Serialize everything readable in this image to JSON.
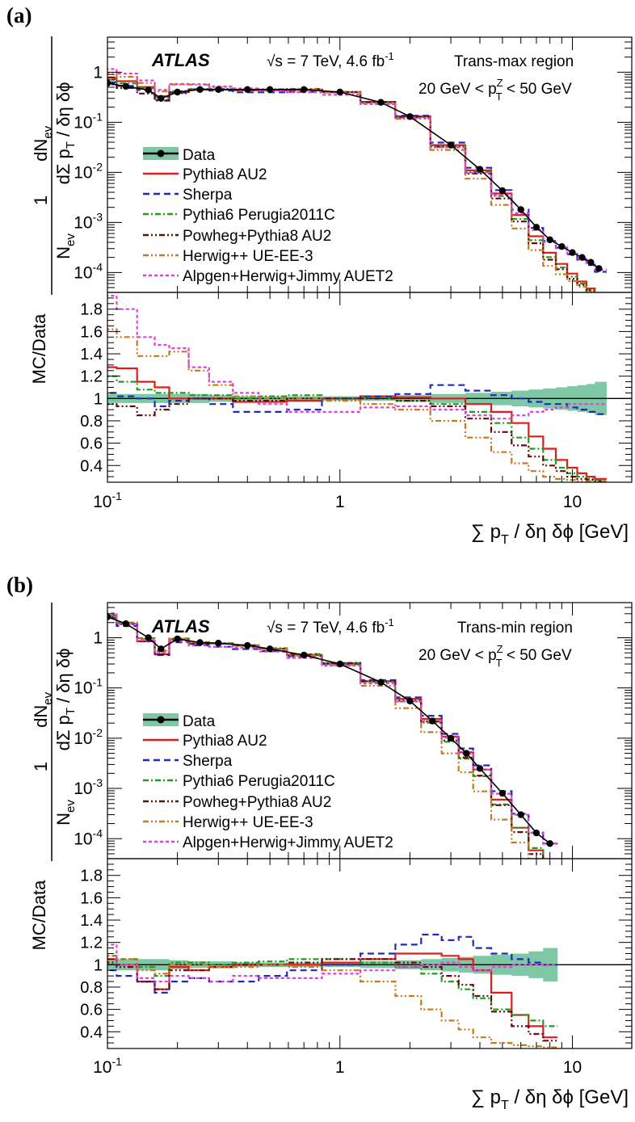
{
  "figure": {
    "panels": [
      {
        "label": "(a)",
        "atlas": "ATLAS",
        "energy_pre": "√s = 7 TeV, 4.6 fb",
        "energy_sup": "-1",
        "region": "Trans-max region",
        "ptcut_pre": "20 GeV < p",
        "ptcut_sup": "Z",
        "ptcut_sub": "T",
        "ptcut_post": " < 50 GeV"
      },
      {
        "label": "(b)",
        "atlas": "ATLAS",
        "energy_pre": "√s = 7 TeV, 4.6 fb",
        "energy_sup": "-1",
        "region": "Trans-min region",
        "ptcut_pre": "20 GeV < p",
        "ptcut_sup": "Z",
        "ptcut_sub": "T",
        "ptcut_post": " < 50 GeV"
      }
    ],
    "ylabel_top": {
      "one": "1",
      "n": "N",
      "n_sub": "ev",
      "num": "dN",
      "num_sub": "ev",
      "den1": "dΣ p",
      "den_sub": "T",
      "den2": " / δη δϕ"
    },
    "ylabel_ratio": "MC/Data",
    "xlabel": {
      "pre": "∑ p",
      "sub": "T",
      "post": " / δη δϕ [GeV]"
    },
    "main_ytick_labels": [
      {
        "mant": "10",
        "exp": "-4"
      },
      {
        "mant": "10",
        "exp": "-3"
      },
      {
        "mant": "10",
        "exp": "-2"
      },
      {
        "mant": "10",
        "exp": "-1"
      },
      {
        "mant": "1",
        "exp": ""
      }
    ],
    "ratio_ytick_labels": [
      "0.4",
      "0.6",
      "0.8",
      "1",
      "1.2",
      "1.4",
      "1.6",
      "1.8"
    ],
    "xtick_labels": [
      {
        "mant": "10",
        "exp": "-1"
      },
      {
        "mant": "1",
        "exp": ""
      },
      {
        "mant": "10",
        "exp": ""
      }
    ]
  },
  "chart_data": [
    {
      "type": "line",
      "panel": "(a)",
      "title": "Trans-max region, 20 GeV < pT^Z < 50 GeV",
      "xlabel": "∑ pT / δη δϕ [GeV]",
      "ylabel": "1/Nev dNev/d∑pT/δηδϕ",
      "xscale": "log",
      "yscale": "log",
      "xlim": [
        0.1,
        18
      ],
      "ylim": [
        4e-05,
        5
      ],
      "ratio_ylabel": "MC/Data",
      "ratio_ylim": [
        0.25,
        1.95
      ],
      "x": [
        0.1,
        0.12,
        0.15,
        0.17,
        0.2,
        0.25,
        0.3,
        0.4,
        0.5,
        0.7,
        1.0,
        1.5,
        2.0,
        3.0,
        4.0,
        5.0,
        6.0,
        7.0,
        8.0,
        9.0,
        10.0,
        11.0,
        12.0,
        13.0
      ],
      "data": {
        "values": [
          0.6,
          0.52,
          0.44,
          0.3,
          0.4,
          0.45,
          0.45,
          0.45,
          0.45,
          0.45,
          0.4,
          0.25,
          0.13,
          0.035,
          0.0115,
          0.0043,
          0.0018,
          0.0008,
          0.00045,
          0.00033,
          0.00025,
          0.0002,
          0.00016,
          0.00012
        ],
        "band": [
          0.04,
          0.04,
          0.04,
          0.04,
          0.04,
          0.04,
          0.03,
          0.02,
          0.02,
          0.02,
          0.02,
          0.02,
          0.03,
          0.04,
          0.05,
          0.06,
          0.07,
          0.08,
          0.09,
          0.1,
          0.11,
          0.12,
          0.13,
          0.15
        ]
      },
      "series": [
        {
          "name": "Pythia8 AU2",
          "style": "solid",
          "color": "#e41a1c",
          "ratio": [
            1.28,
            1.27,
            1.15,
            1.1,
            1.0,
            1.0,
            1.0,
            0.97,
            0.97,
            0.98,
            1.0,
            1.02,
            1.01,
            1.0,
            0.95,
            0.88,
            0.78,
            0.66,
            0.55,
            0.45,
            0.38,
            0.33,
            0.3,
            0.28
          ]
        },
        {
          "name": "Sherpa",
          "style": "dash",
          "color": "#1f2bb8",
          "ratio": [
            1.05,
            1.02,
            1.0,
            0.93,
            0.98,
            1.0,
            0.95,
            0.88,
            0.88,
            0.9,
            1.0,
            1.02,
            1.04,
            1.12,
            1.07,
            1.03,
            1.0,
            0.97,
            0.95,
            0.95,
            0.92,
            0.9,
            0.88,
            0.86
          ]
        },
        {
          "name": "Pythia6 Perugia2011C",
          "style": "dashdot",
          "color": "#1e9e1e",
          "ratio": [
            1.2,
            1.15,
            1.08,
            1.05,
            1.05,
            1.03,
            1.03,
            1.0,
            1.02,
            1.03,
            1.0,
            1.0,
            0.98,
            0.95,
            0.88,
            0.78,
            0.65,
            0.55,
            0.45,
            0.38,
            0.33,
            0.3,
            0.28,
            0.27
          ]
        },
        {
          "name": "Powheg+Pythia8 AU2",
          "style": "dashdotdot",
          "color": "#6b0a0a",
          "ratio": [
            0.95,
            0.93,
            0.85,
            0.9,
            0.95,
            1.0,
            1.0,
            0.98,
            0.98,
            1.0,
            1.0,
            1.0,
            0.98,
            0.93,
            0.82,
            0.7,
            0.58,
            0.48,
            0.4,
            0.35,
            0.3,
            0.28,
            0.27,
            0.26
          ]
        },
        {
          "name": "Herwig++ UE-EE-3",
          "style": "dashdotdot",
          "color": "#c8781e",
          "ratio": [
            1.62,
            1.55,
            1.38,
            1.38,
            1.42,
            1.25,
            1.12,
            1.02,
            1.0,
            1.0,
            0.98,
            0.95,
            0.9,
            0.8,
            0.65,
            0.52,
            0.42,
            0.35,
            0.3,
            0.28,
            0.27,
            0.26,
            0.26,
            0.26
          ]
        },
        {
          "name": "Alpgen+Herwig+Jimmy AUET2",
          "style": "dot",
          "color": "#e040e0",
          "ratio": [
            1.92,
            1.8,
            1.55,
            1.48,
            1.45,
            1.28,
            1.15,
            1.05,
            0.95,
            0.88,
            0.88,
            0.92,
            0.93,
            0.9,
            0.85,
            0.82,
            0.85,
            0.88,
            0.9,
            0.92,
            0.95,
            0.95,
            0.95,
            0.95
          ]
        }
      ]
    },
    {
      "type": "line",
      "panel": "(b)",
      "title": "Trans-min region, 20 GeV < pT^Z < 50 GeV",
      "xlabel": "∑ pT / δη δϕ [GeV]",
      "ylabel": "1/Nev dNev/d∑pT/δηδϕ",
      "xscale": "log",
      "yscale": "log",
      "xlim": [
        0.1,
        18
      ],
      "ylim": [
        4e-05,
        5
      ],
      "ratio_ylabel": "MC/Data",
      "ratio_ylim": [
        0.25,
        1.95
      ],
      "x": [
        0.1,
        0.12,
        0.15,
        0.17,
        0.2,
        0.25,
        0.3,
        0.4,
        0.5,
        0.7,
        1.0,
        1.5,
        2.0,
        2.5,
        3.0,
        3.5,
        4.0,
        5.0,
        6.0,
        7.0,
        8.0
      ],
      "data": {
        "values": [
          2.6,
          1.9,
          1.0,
          0.6,
          0.95,
          0.8,
          0.78,
          0.7,
          0.6,
          0.45,
          0.3,
          0.13,
          0.055,
          0.022,
          0.01,
          0.005,
          0.0025,
          0.0008,
          0.0003,
          0.00013,
          8e-05
        ],
        "band": [
          0.05,
          0.05,
          0.05,
          0.05,
          0.04,
          0.03,
          0.03,
          0.02,
          0.02,
          0.02,
          0.02,
          0.03,
          0.04,
          0.05,
          0.06,
          0.07,
          0.08,
          0.09,
          0.1,
          0.12,
          0.15
        ]
      },
      "series": [
        {
          "name": "Pythia8 AU2",
          "style": "solid",
          "color": "#e41a1c",
          "ratio": [
            1.05,
            1.0,
            0.85,
            0.78,
            0.98,
            0.95,
            0.98,
            1.0,
            1.0,
            1.0,
            1.02,
            1.05,
            1.1,
            1.1,
            1.08,
            1.05,
            0.95,
            0.75,
            0.55,
            0.45,
            0.35
          ]
        },
        {
          "name": "Sherpa",
          "style": "dash",
          "color": "#1f2bb8",
          "ratio": [
            0.95,
            0.9,
            0.85,
            0.75,
            0.85,
            0.88,
            0.85,
            0.85,
            0.9,
            0.95,
            1.0,
            1.1,
            1.18,
            1.27,
            1.22,
            1.25,
            1.15,
            1.1,
            1.05,
            1.02,
            1.0
          ]
        },
        {
          "name": "Pythia6 Perugia2011C",
          "style": "dashdot",
          "color": "#1e9e1e",
          "ratio": [
            1.08,
            1.05,
            0.98,
            0.9,
            1.02,
            1.02,
            1.0,
            1.02,
            1.03,
            1.05,
            1.05,
            1.02,
            0.98,
            0.92,
            0.85,
            0.78,
            0.7,
            0.6,
            0.55,
            0.5,
            0.45
          ]
        },
        {
          "name": "Powheg+Pythia8 AU2",
          "style": "dashdotdot",
          "color": "#6b0a0a",
          "ratio": [
            1.02,
            0.98,
            0.85,
            0.78,
            0.95,
            0.95,
            0.98,
            1.0,
            1.0,
            1.02,
            1.05,
            1.05,
            1.02,
            0.98,
            0.9,
            0.82,
            0.72,
            0.58,
            0.45,
            0.38,
            0.32
          ]
        },
        {
          "name": "Herwig++ UE-EE-3",
          "style": "dashdotdot",
          "color": "#c8781e",
          "ratio": [
            1.08,
            1.05,
            0.95,
            0.92,
            1.0,
            1.0,
            0.98,
            0.98,
            1.0,
            0.98,
            0.95,
            0.85,
            0.72,
            0.6,
            0.5,
            0.42,
            0.35,
            0.3,
            0.28,
            0.27,
            0.26
          ]
        },
        {
          "name": "Alpgen+Herwig+Jimmy AUET2",
          "style": "dot",
          "color": "#e040e0",
          "ratio": [
            1.18,
            1.0,
            0.88,
            0.85,
            0.9,
            0.88,
            0.85,
            0.9,
            0.88,
            0.88,
            0.92,
            0.95,
            0.98,
            1.0,
            1.02,
            0.98,
            0.95,
            0.98,
            1.0,
            1.0,
            1.0
          ]
        }
      ]
    }
  ]
}
